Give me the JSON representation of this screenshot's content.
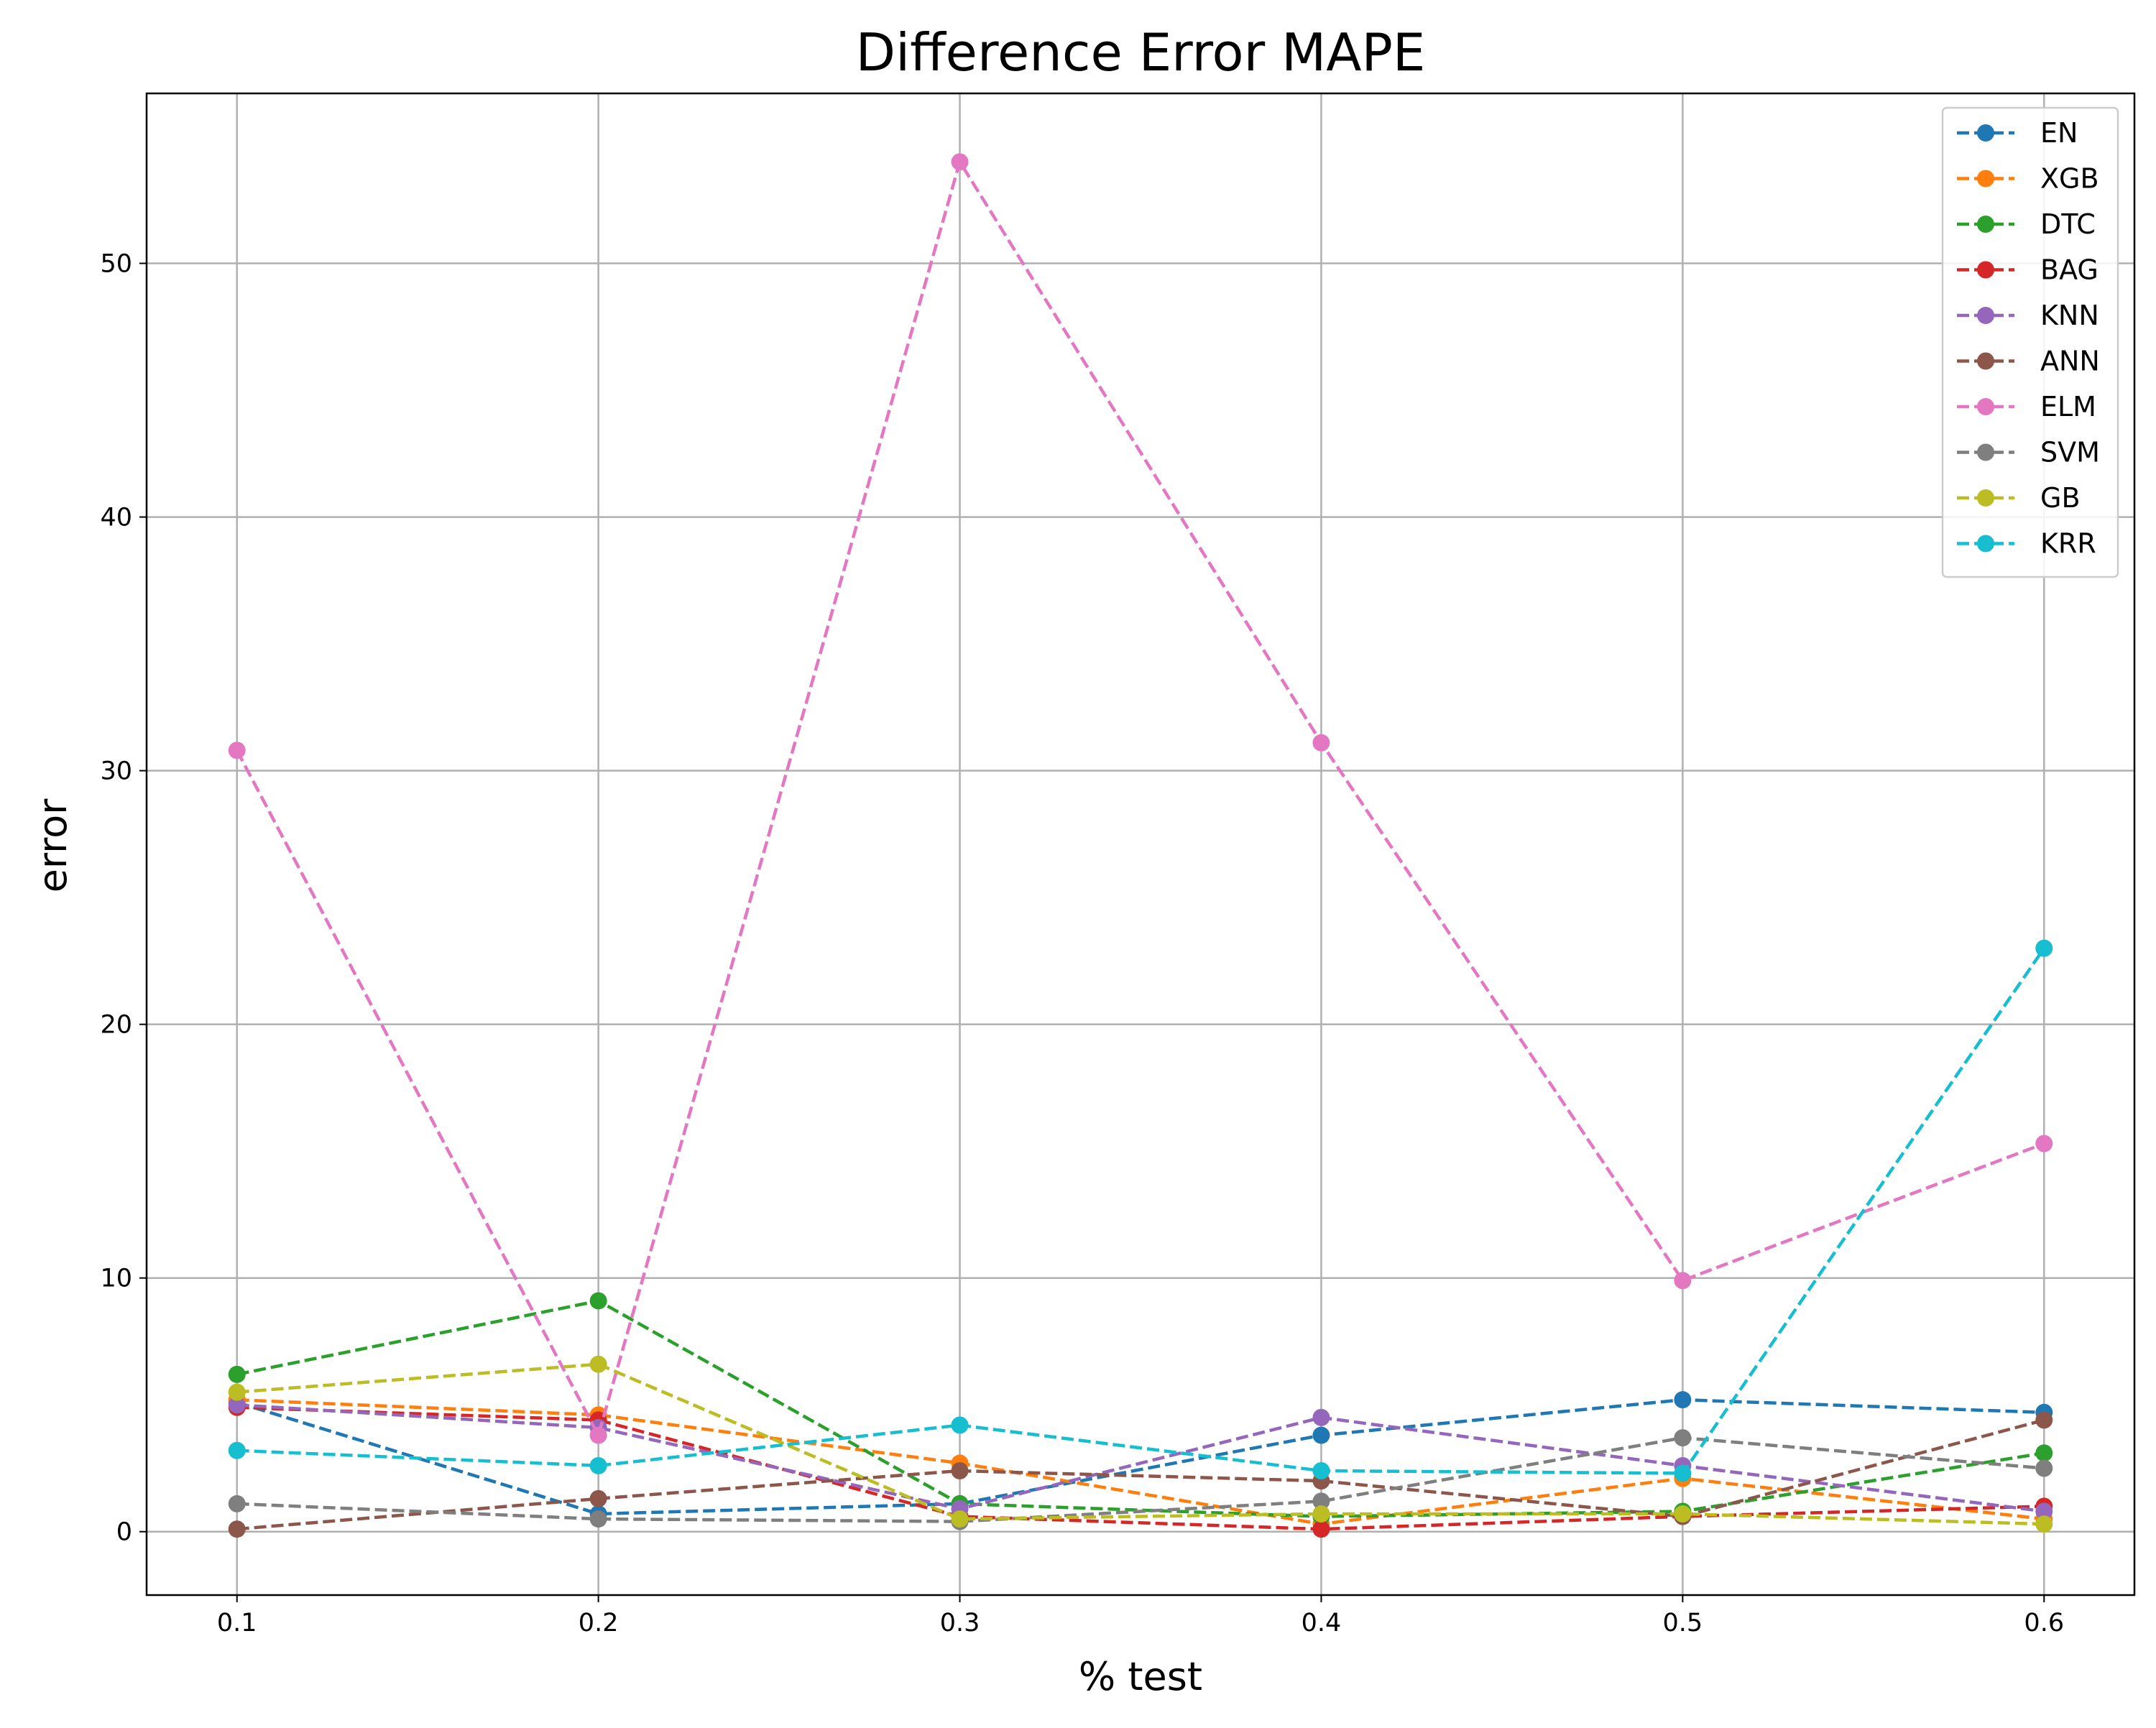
{
  "chart_data": {
    "type": "line",
    "title": "Difference Error MAPE",
    "xlabel": "% test",
    "ylabel": "error",
    "x": [
      0.1,
      0.2,
      0.3,
      0.4,
      0.5,
      0.6
    ],
    "x_tick_labels": [
      "0.1",
      "0.2",
      "0.3",
      "0.4",
      "0.5",
      "0.6"
    ],
    "xlim": [
      0.075,
      0.625
    ],
    "ylim": [
      -2.5,
      56.7
    ],
    "y_ticks": [
      0,
      10,
      20,
      30,
      40,
      50
    ],
    "y_tick_labels": [
      "0",
      "10",
      "20",
      "30",
      "40",
      "50"
    ],
    "grid": true,
    "legend_position": "top-right",
    "line_style": "dashed",
    "marker": "circle",
    "series": [
      {
        "name": "EN",
        "color": "#1f77b4",
        "values": [
          5.1,
          0.7,
          1.1,
          3.8,
          5.2,
          4.7
        ]
      },
      {
        "name": "XGB",
        "color": "#ff7f0e",
        "values": [
          5.2,
          4.6,
          2.7,
          0.3,
          2.1,
          0.5
        ]
      },
      {
        "name": "DTC",
        "color": "#2ca02c",
        "values": [
          6.2,
          9.1,
          1.1,
          0.6,
          0.8,
          3.1
        ]
      },
      {
        "name": "BAG",
        "color": "#d62728",
        "values": [
          4.9,
          4.4,
          0.6,
          0.1,
          0.6,
          1.0
        ]
      },
      {
        "name": "KNN",
        "color": "#9467bd",
        "values": [
          5.0,
          4.1,
          0.9,
          4.5,
          2.6,
          0.8
        ]
      },
      {
        "name": "ANN",
        "color": "#8c564b",
        "values": [
          0.1,
          1.3,
          2.4,
          2.0,
          0.6,
          4.4
        ]
      },
      {
        "name": "ELM",
        "color": "#e377c2",
        "values": [
          30.8,
          3.8,
          54.0,
          31.1,
          9.9,
          15.3
        ]
      },
      {
        "name": "SVM",
        "color": "#7f7f7f",
        "values": [
          1.1,
          0.5,
          0.4,
          1.2,
          3.7,
          2.5
        ]
      },
      {
        "name": "GB",
        "color": "#bcbd22",
        "values": [
          5.5,
          6.6,
          0.5,
          0.7,
          0.7,
          0.3
        ]
      },
      {
        "name": "KRR",
        "color": "#17becf",
        "values": [
          3.2,
          2.6,
          4.2,
          2.4,
          2.3,
          23.0
        ]
      }
    ]
  }
}
